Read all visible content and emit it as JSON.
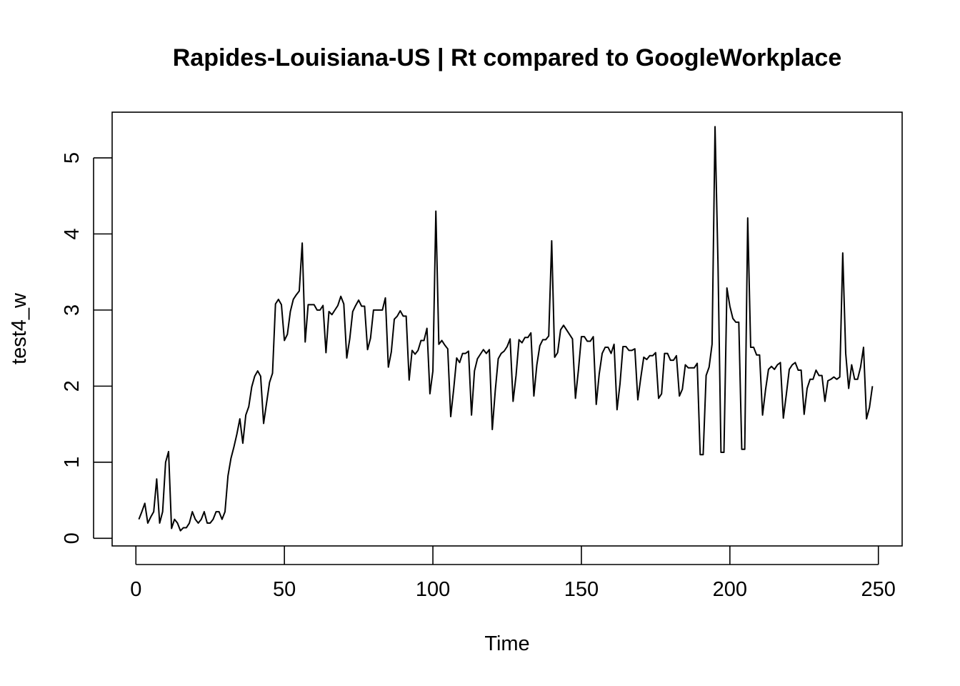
{
  "chart_data": {
    "type": "line",
    "title": "Rapides-Louisiana-US | Rt compared to GoogleWorkplace",
    "xlabel": "Time",
    "ylabel": "test4_w",
    "xlim": [
      -8,
      258
    ],
    "ylim": [
      -0.1,
      5.6
    ],
    "xticks": [
      "0",
      "50",
      "100",
      "150",
      "200",
      "250"
    ],
    "yticks": [
      "0",
      "1",
      "2",
      "3",
      "4",
      "5"
    ],
    "grid": false,
    "colors": {
      "line": "#000000",
      "background": "#ffffff"
    },
    "series": [
      {
        "x": [
          1,
          2,
          3,
          4,
          5,
          6,
          7,
          8,
          9,
          10,
          11,
          12,
          13,
          14,
          15,
          16,
          17,
          18,
          19,
          20,
          21,
          22,
          23,
          24,
          25,
          26,
          27,
          28,
          29,
          30,
          31,
          32,
          33,
          34,
          35,
          36,
          37,
          38,
          39,
          40,
          41,
          42,
          43,
          44,
          45,
          46,
          47,
          48,
          49,
          50,
          51,
          52,
          53,
          54,
          55,
          56,
          57,
          58,
          59,
          60,
          61,
          62,
          63,
          64,
          65,
          66,
          67,
          68,
          69,
          70,
          71,
          72,
          73,
          74,
          75,
          76,
          77,
          78,
          79,
          80,
          81,
          82,
          83,
          84,
          85,
          86,
          87,
          88,
          89,
          90,
          91,
          92,
          93,
          94,
          95,
          96,
          97,
          98,
          99,
          100,
          101,
          102,
          103,
          104,
          105,
          106,
          107,
          108,
          109,
          110,
          111,
          112,
          113,
          114,
          115,
          116,
          117,
          118,
          119,
          120,
          121,
          122,
          123,
          124,
          125,
          126,
          127,
          128,
          129,
          130,
          131,
          132,
          133,
          134,
          135,
          136,
          137,
          138,
          139,
          140,
          141,
          142,
          143,
          144,
          145,
          146,
          147,
          148,
          149,
          150,
          151,
          152,
          153,
          154,
          155,
          156,
          157,
          158,
          159,
          160,
          161,
          162,
          163,
          164,
          165,
          166,
          167,
          168,
          169,
          170,
          171,
          172,
          173,
          174,
          175,
          176,
          177,
          178,
          179,
          180,
          181,
          182,
          183,
          184,
          185,
          186,
          187,
          188,
          189,
          190,
          191,
          192,
          193,
          194,
          195,
          196,
          197,
          198,
          199,
          200,
          201,
          202,
          203,
          204,
          205,
          206,
          207,
          208,
          209,
          210,
          211,
          212,
          213,
          214,
          215,
          216,
          217,
          218,
          219,
          220,
          221,
          222,
          223,
          224,
          225,
          226,
          227,
          228,
          229,
          230,
          231,
          232,
          233,
          234,
          235,
          236,
          237,
          238,
          239,
          240,
          241,
          242,
          243,
          244,
          245,
          246,
          247,
          248
        ],
        "values": [
          0.25,
          0.35,
          0.46,
          0.2,
          0.28,
          0.35,
          0.78,
          0.2,
          0.35,
          1.0,
          1.14,
          0.13,
          0.25,
          0.2,
          0.1,
          0.14,
          0.14,
          0.2,
          0.35,
          0.25,
          0.2,
          0.25,
          0.35,
          0.2,
          0.2,
          0.25,
          0.35,
          0.35,
          0.25,
          0.35,
          0.82,
          1.05,
          1.2,
          1.37,
          1.57,
          1.25,
          1.62,
          1.73,
          1.99,
          2.13,
          2.2,
          2.13,
          1.51,
          1.78,
          2.05,
          2.17,
          3.08,
          3.14,
          3.07,
          2.6,
          2.68,
          2.98,
          3.14,
          3.2,
          3.25,
          3.88,
          2.58,
          3.07,
          3.07,
          3.07,
          3.0,
          3.0,
          3.06,
          2.44,
          2.98,
          2.94,
          3.0,
          3.06,
          3.18,
          3.08,
          2.37,
          2.62,
          2.98,
          3.06,
          3.13,
          3.05,
          3.05,
          2.48,
          2.63,
          3.0,
          3.0,
          3.0,
          3.0,
          3.16,
          2.25,
          2.45,
          2.88,
          2.92,
          2.99,
          2.92,
          2.92,
          2.08,
          2.47,
          2.42,
          2.47,
          2.6,
          2.6,
          2.76,
          1.9,
          2.2,
          4.3,
          2.55,
          2.6,
          2.54,
          2.49,
          1.6,
          1.96,
          2.37,
          2.31,
          2.43,
          2.43,
          2.46,
          1.62,
          2.2,
          2.36,
          2.42,
          2.48,
          2.43,
          2.48,
          1.43,
          1.94,
          2.36,
          2.43,
          2.46,
          2.52,
          2.62,
          1.8,
          2.14,
          2.61,
          2.57,
          2.64,
          2.64,
          2.7,
          1.87,
          2.28,
          2.53,
          2.61,
          2.61,
          2.66,
          3.91,
          2.38,
          2.44,
          2.74,
          2.8,
          2.74,
          2.68,
          2.62,
          1.84,
          2.21,
          2.65,
          2.65,
          2.59,
          2.59,
          2.65,
          1.76,
          2.16,
          2.43,
          2.51,
          2.51,
          2.43,
          2.55,
          1.69,
          2.03,
          2.52,
          2.52,
          2.47,
          2.47,
          2.49,
          1.82,
          2.11,
          2.38,
          2.35,
          2.4,
          2.4,
          2.44,
          1.84,
          1.9,
          2.43,
          2.43,
          2.34,
          2.34,
          2.4,
          1.87,
          1.96,
          2.28,
          2.24,
          2.24,
          2.24,
          2.3,
          1.1,
          1.1,
          2.14,
          2.25,
          2.55,
          5.41,
          3.6,
          1.13,
          1.13,
          3.29,
          3.05,
          2.89,
          2.84,
          2.84,
          1.17,
          1.17,
          4.21,
          2.51,
          2.51,
          2.41,
          2.41,
          1.62,
          1.95,
          2.22,
          2.26,
          2.22,
          2.28,
          2.31,
          1.58,
          1.89,
          2.22,
          2.28,
          2.31,
          2.21,
          2.21,
          1.63,
          1.97,
          2.09,
          2.09,
          2.21,
          2.14,
          2.14,
          1.8,
          2.07,
          2.09,
          2.12,
          2.09,
          2.12,
          3.75,
          2.43,
          1.97,
          2.28,
          2.09,
          2.09,
          2.25,
          2.51,
          1.57,
          1.72,
          2.0
        ]
      }
    ]
  }
}
